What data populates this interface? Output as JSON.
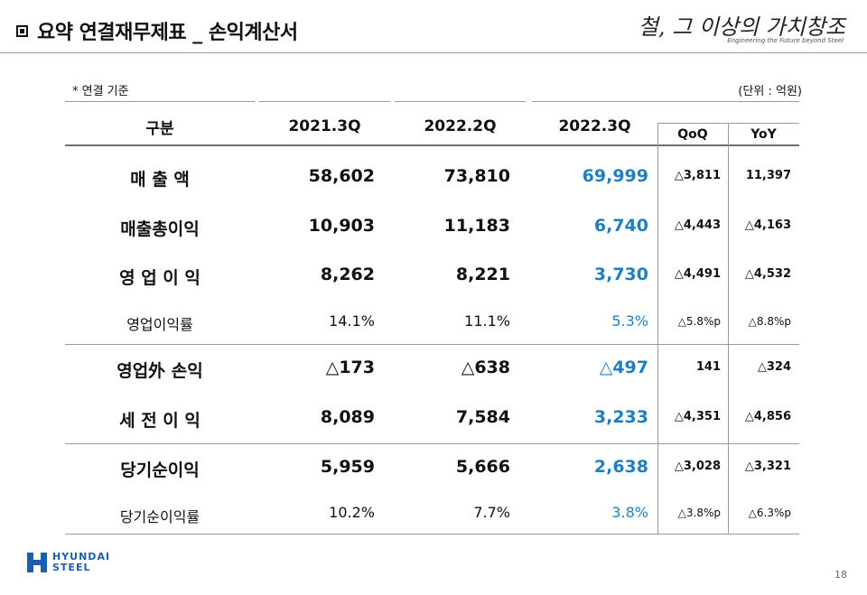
{
  "header": {
    "title": "요약 연결재무제표 _ 손익계산서",
    "slogan": "철, 그 이상의 가치창조",
    "slogan_sub": "Engineering the Future beyond Steel"
  },
  "table": {
    "note": "* 연결 기준",
    "unit": "(단위 : 억원)",
    "headers": {
      "category": "구분",
      "p1": "2021.3Q",
      "p2": "2022.2Q",
      "p3": "2022.3Q",
      "qoq": "QoQ",
      "yoy": "YoY"
    },
    "rows": [
      {
        "label": "매 출 액",
        "v1": "58,602",
        "v2": "73,810",
        "v3": "69,999",
        "qoq": "△3,811",
        "yoy": "11,397"
      },
      {
        "label": "매출총이익",
        "v1": "10,903",
        "v2": "11,183",
        "v3": "6,740",
        "qoq": "△4,443",
        "yoy": "△4,163"
      },
      {
        "label": "영 업 이 익",
        "v1": "8,262",
        "v2": "8,221",
        "v3": "3,730",
        "qoq": "△4,491",
        "yoy": "△4,532"
      },
      {
        "label": "영업이익률",
        "v1": "14.1%",
        "v2": "11.1%",
        "v3": "5.3%",
        "qoq": "△5.8%p",
        "yoy": "△8.8%p"
      },
      {
        "label": "영업外 손익",
        "v1": "△173",
        "v2": "△638",
        "v3": "△497",
        "qoq": "141",
        "yoy": "△324"
      },
      {
        "label": "세 전 이 익",
        "v1": "8,089",
        "v2": "7,584",
        "v3": "3,233",
        "qoq": "△4,351",
        "yoy": "△4,856"
      },
      {
        "label": "당기순이익",
        "v1": "5,959",
        "v2": "5,666",
        "v3": "2,638",
        "qoq": "△3,028",
        "yoy": "△3,321"
      },
      {
        "label": "당기순이익률",
        "v1": "10.2%",
        "v2": "7.7%",
        "v3": "3.8%",
        "qoq": "△3.8%p",
        "yoy": "△6.3%p"
      }
    ]
  },
  "footer": {
    "logo_line1": "HYUNDAI",
    "logo_line2": "STEEL",
    "page_number": "18"
  },
  "colors": {
    "accent": "#1f7fc4",
    "brand": "#1d5fae"
  }
}
